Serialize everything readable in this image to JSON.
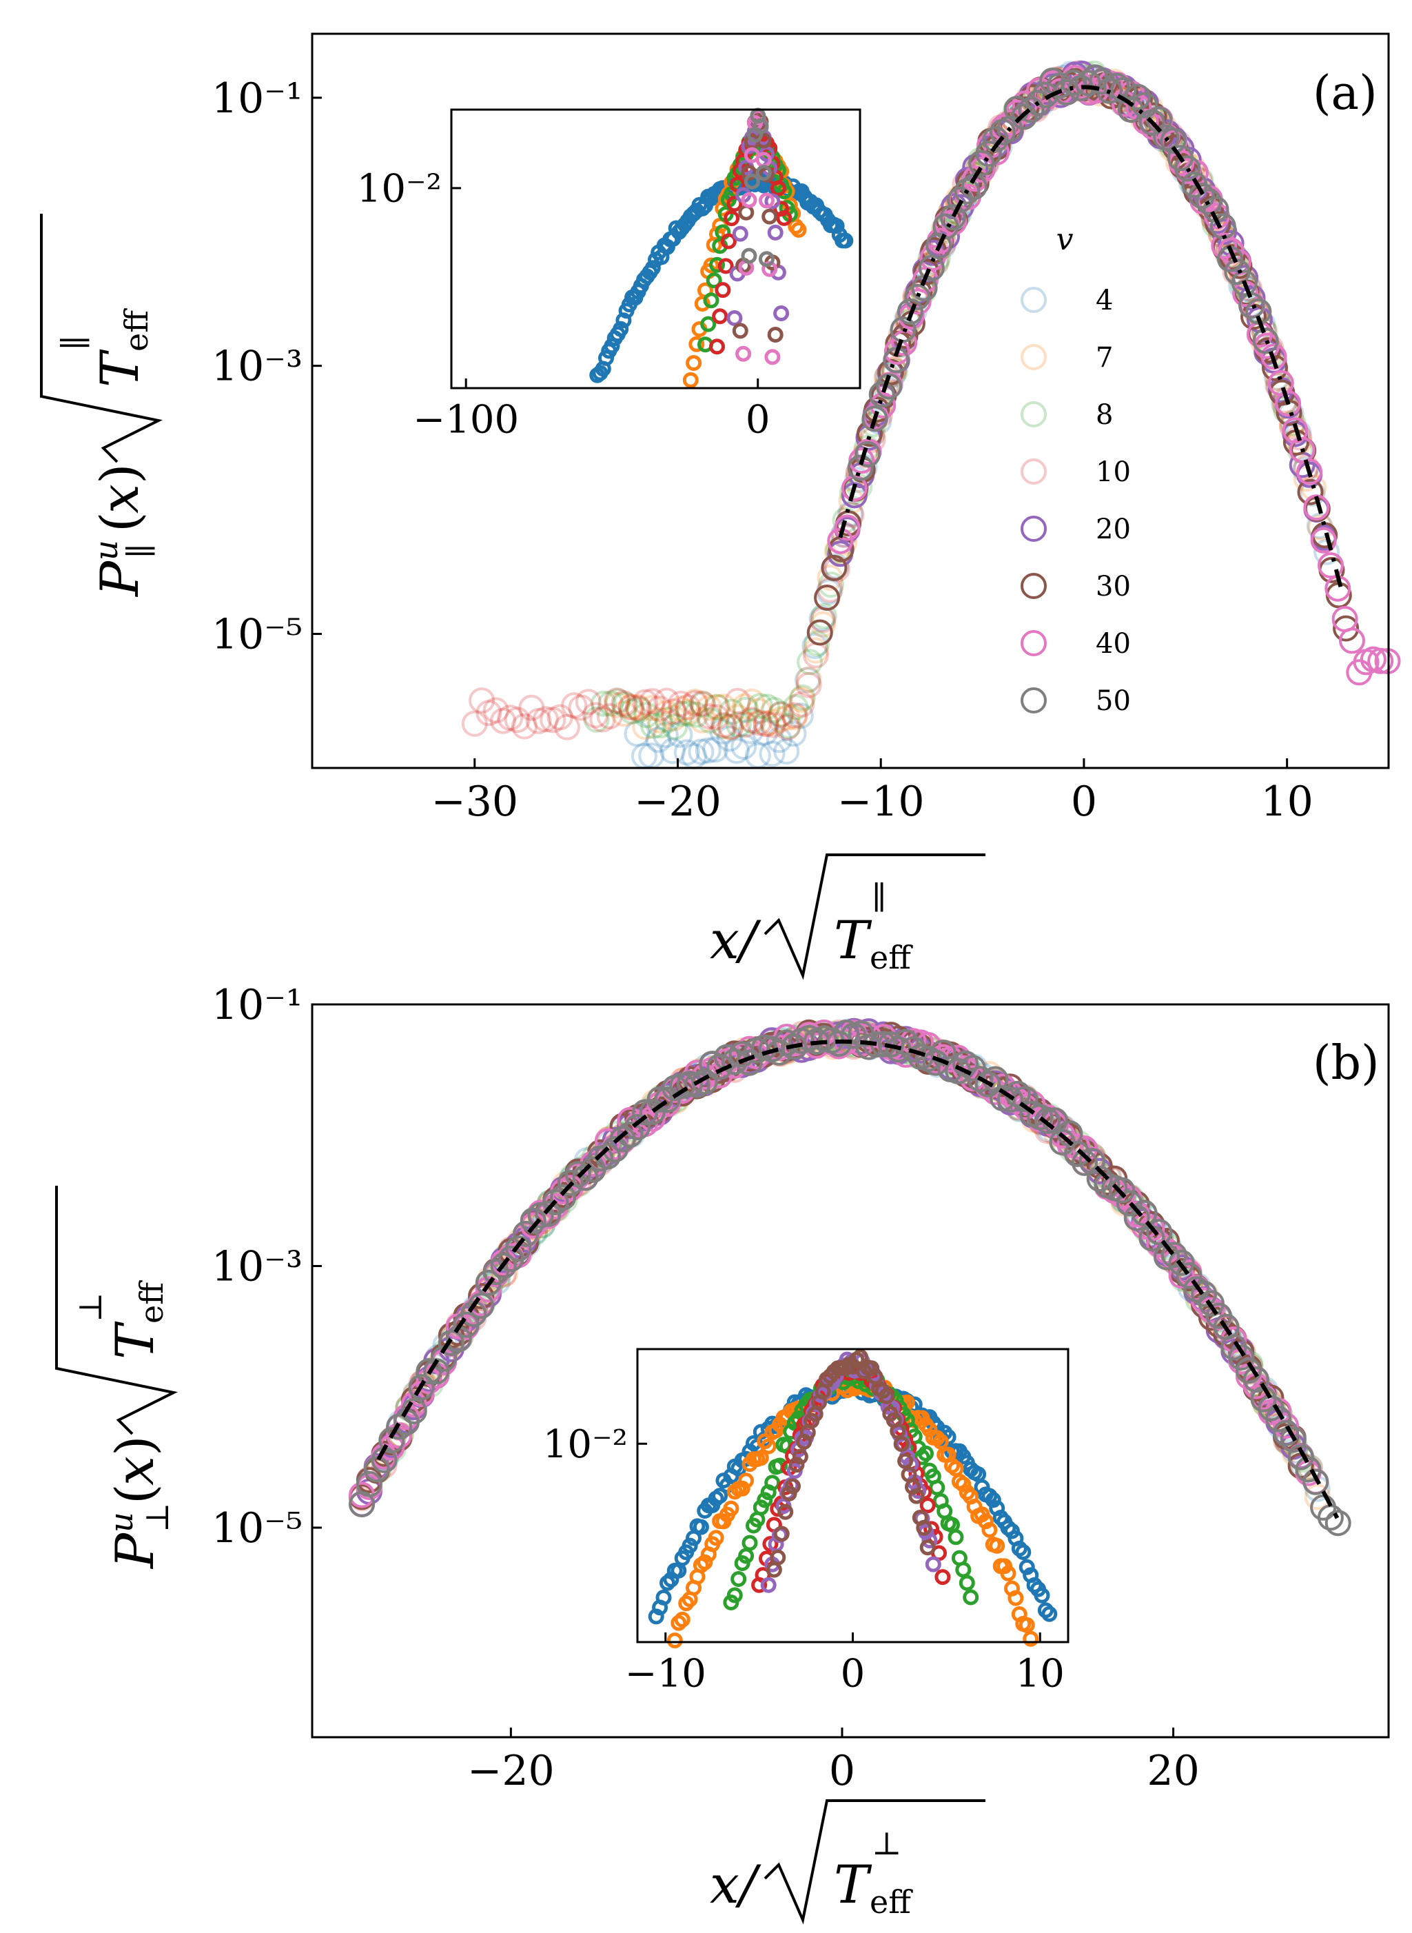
{
  "chart_data": [
    {
      "id": "a",
      "type": "scatter",
      "panel_label": "(a)",
      "xlabel": "x/√T_eff^∥",
      "ylabel": "P_∥^u(x) √T_eff^∥",
      "xlim": [
        -38,
        15
      ],
      "ylim": [
        1e-06,
        0.3
      ],
      "yscale": "log",
      "xticks": [
        -30,
        -20,
        -10,
        0,
        10
      ],
      "xtick_labels": [
        "−30",
        "−20",
        "−10",
        "0",
        "10"
      ],
      "yticks": [
        0.1,
        0.001,
        1e-05
      ],
      "ytick_labels": [
        "10⁻¹",
        "10⁻³",
        "10⁻⁵"
      ],
      "legend": {
        "title": "v",
        "placement": "center-right",
        "entries": [
          "4",
          "7",
          "8",
          "10",
          "20",
          "30",
          "40",
          "50"
        ]
      },
      "series": [
        {
          "name": "4",
          "color": "#1f77b4",
          "alpha": 0.25,
          "sigma": 3.0,
          "peak": 0.13,
          "xmin": -22,
          "xmax": 12,
          "floor": 1.2e-06
        },
        {
          "name": "7",
          "color": "#ff7f0e",
          "alpha": 0.25,
          "sigma": 3.0,
          "peak": 0.13,
          "xmin": -23,
          "xmax": 12,
          "floor": 2e-06
        },
        {
          "name": "8",
          "color": "#2ca02c",
          "alpha": 0.25,
          "sigma": 3.0,
          "peak": 0.13,
          "xmin": -24,
          "xmax": 11,
          "floor": 2e-06
        },
        {
          "name": "10",
          "color": "#d62728",
          "alpha": 0.25,
          "sigma": 3.0,
          "peak": 0.13,
          "xmin": -30,
          "xmax": 11,
          "floor": 2e-06
        },
        {
          "name": "20",
          "color": "#9467bd",
          "alpha": 1.0,
          "sigma": 3.0,
          "peak": 0.13,
          "xmin": -12,
          "xmax": 12,
          "floor": 4e-06
        },
        {
          "name": "30",
          "color": "#8c564b",
          "alpha": 1.0,
          "sigma": 3.0,
          "peak": 0.13,
          "xmin": -13,
          "xmax": 13,
          "floor": 5e-06
        },
        {
          "name": "40",
          "color": "#e377c2",
          "alpha": 1.0,
          "sigma": 3.0,
          "peak": 0.13,
          "xmin": -12,
          "xmax": 15,
          "floor": 5e-06
        },
        {
          "name": "50",
          "color": "#7f7f7f",
          "alpha": 1.0,
          "sigma": 3.0,
          "peak": 0.13,
          "xmin": -11,
          "xmax": 9,
          "floor": 1e-05
        }
      ],
      "fit": {
        "style": "dash-dot",
        "color": "#000000",
        "sigma": 3.05,
        "peak": 0.12,
        "xmin": -12,
        "xmax": 12.7
      },
      "inset": {
        "xlim": [
          -105,
          35
        ],
        "ylim": [
          5e-05,
          0.08
        ],
        "yscale": "log",
        "xticks": [
          -100,
          0
        ],
        "xtick_labels": [
          "−100",
          "0"
        ],
        "yticks": [
          0.01
        ],
        "ytick_labels": [
          "10⁻²"
        ],
        "series": [
          {
            "color": "#1f77b4",
            "sigma": 17,
            "peak": 0.012,
            "xmin": -72,
            "xmax": 30
          },
          {
            "color": "#ff7f0e",
            "sigma": 6.5,
            "peak": 0.03,
            "xmin": -24,
            "xmax": 14
          },
          {
            "color": "#2ca02c",
            "sigma": 5.5,
            "peak": 0.035,
            "xmin": -18,
            "xmax": 11
          },
          {
            "color": "#d62728",
            "sigma": 4.2,
            "peak": 0.04,
            "xmin": -14,
            "xmax": 9
          },
          {
            "color": "#9467bd",
            "sigma": 2.5,
            "peak": 0.055,
            "xmin": -8,
            "xmax": 8
          },
          {
            "color": "#8c564b",
            "sigma": 1.8,
            "peak": 0.06,
            "xmin": -6,
            "xmax": 6
          },
          {
            "color": "#e377c2",
            "sigma": 1.4,
            "peak": 0.065,
            "xmin": -5,
            "xmax": 5
          },
          {
            "color": "#7f7f7f",
            "sigma": 1.1,
            "peak": 0.07,
            "xmin": -3,
            "xmax": 3
          }
        ]
      }
    },
    {
      "id": "b",
      "type": "scatter",
      "panel_label": "(b)",
      "xlabel": "x/√T_eff^⊥",
      "ylabel": "P_⊥^u(x) √T_eff^⊥",
      "xlim": [
        -32,
        33
      ],
      "ylim": [
        2.5e-07,
        0.1
      ],
      "yscale": "log",
      "xticks": [
        -20,
        0,
        20
      ],
      "xtick_labels": [
        "−20",
        "0",
        "20"
      ],
      "yticks": [
        0.1,
        0.001,
        1e-05
      ],
      "ytick_labels": [
        "10⁻¹",
        "10⁻³",
        "10⁻⁵"
      ],
      "series": [
        {
          "name": "4",
          "color": "#1f77b4",
          "alpha": 0.25,
          "sigma": 7.2,
          "peak": 0.055,
          "xmin": -28,
          "xmax": 29
        },
        {
          "name": "7",
          "color": "#ff7f0e",
          "alpha": 0.25,
          "sigma": 7.2,
          "peak": 0.055,
          "xmin": -28,
          "xmax": 29
        },
        {
          "name": "8",
          "color": "#2ca02c",
          "alpha": 0.25,
          "sigma": 7.2,
          "peak": 0.055,
          "xmin": -28,
          "xmax": 28
        },
        {
          "name": "10",
          "color": "#d62728",
          "alpha": 0.25,
          "sigma": 7.2,
          "peak": 0.055,
          "xmin": -29,
          "xmax": 28
        },
        {
          "name": "20",
          "color": "#9467bd",
          "alpha": 1.0,
          "sigma": 7.2,
          "peak": 0.055,
          "xmin": -29,
          "xmax": 28
        },
        {
          "name": "30",
          "color": "#8c564b",
          "alpha": 1.0,
          "sigma": 7.2,
          "peak": 0.055,
          "xmin": -29,
          "xmax": 28
        },
        {
          "name": "40",
          "color": "#e377c2",
          "alpha": 1.0,
          "sigma": 7.2,
          "peak": 0.055,
          "xmin": -29,
          "xmax": 29
        },
        {
          "name": "50",
          "color": "#7f7f7f",
          "alpha": 1.0,
          "sigma": 7.2,
          "peak": 0.055,
          "xmin": -29,
          "xmax": 30
        }
      ],
      "fit": {
        "style": "dashed",
        "color": "#000000",
        "sigma": 7.3,
        "peak": 0.052,
        "xmin": -28,
        "xmax": 30
      },
      "inset": {
        "xlim": [
          -11.5,
          11.5
        ],
        "ylim": [
          0.001,
          0.03
        ],
        "yscale": "log",
        "xticks": [
          -10,
          0,
          10
        ],
        "xtick_labels": [
          "−10",
          "0",
          "10"
        ],
        "yticks": [
          0.01
        ],
        "ytick_labels": [
          "10⁻²"
        ],
        "series": [
          {
            "color": "#1f77b4",
            "sigma": 4.6,
            "peak": 0.019,
            "xmin": -10.5,
            "xmax": 10.5
          },
          {
            "color": "#ff7f0e",
            "sigma": 3.9,
            "peak": 0.02,
            "xmin": -9.5,
            "xmax": 9.5
          },
          {
            "color": "#2ca02c",
            "sigma": 2.8,
            "peak": 0.022,
            "xmin": -6.5,
            "xmax": 6.5
          },
          {
            "color": "#d62728",
            "sigma": 2.2,
            "peak": 0.024,
            "xmin": -5,
            "xmax": 5
          },
          {
            "color": "#9467bd",
            "sigma": 2.0,
            "peak": 0.025,
            "xmin": -4.5,
            "xmax": 4.5
          },
          {
            "color": "#8c564b",
            "sigma": 1.9,
            "peak": 0.026,
            "xmin": -4.2,
            "xmax": 4.2
          }
        ]
      }
    }
  ]
}
